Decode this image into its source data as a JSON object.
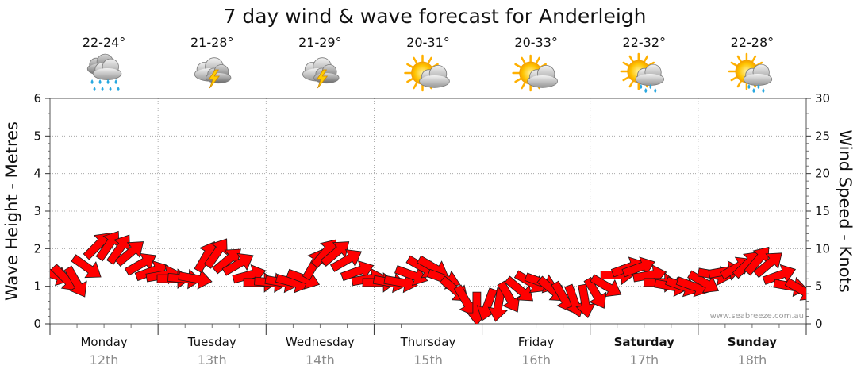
{
  "chart_data": {
    "type": "line",
    "title": "7 day wind & wave forecast for Anderleigh",
    "ylabel_left": "Wave Height - Metres",
    "ylabel_right": "Wind Speed - Knots",
    "ylim_left": [
      0,
      6
    ],
    "ylim_right": [
      0,
      30
    ],
    "left_ticks": [
      "0",
      "1",
      "2",
      "3",
      "4",
      "5",
      "6"
    ],
    "right_ticks": [
      "0",
      "5",
      "10",
      "15",
      "20",
      "25",
      "30"
    ],
    "grid": true,
    "watermark": "www.seabreeze.com.au",
    "days": [
      {
        "day": "Monday",
        "date": "12th",
        "temp": "22-24°",
        "icon": "rain-cloud-icon",
        "weekend": false
      },
      {
        "day": "Tuesday",
        "date": "13th",
        "temp": "21-28°",
        "icon": "thunderstorm-icon",
        "weekend": false
      },
      {
        "day": "Wednesday",
        "date": "14th",
        "temp": "21-29°",
        "icon": "thunderstorm-icon",
        "weekend": false
      },
      {
        "day": "Thursday",
        "date": "15th",
        "temp": "20-31°",
        "icon": "partly-cloudy-icon",
        "weekend": false
      },
      {
        "day": "Friday",
        "date": "16th",
        "temp": "20-33°",
        "icon": "partly-cloudy-icon",
        "weekend": false
      },
      {
        "day": "Saturday",
        "date": "17th",
        "temp": "22-32°",
        "icon": "sun-shower-icon",
        "weekend": true
      },
      {
        "day": "Sunday",
        "date": "18th",
        "temp": "22-28°",
        "icon": "sun-shower-icon",
        "weekend": true
      }
    ],
    "series": [
      {
        "unit": "knots",
        "color": "#ff0000",
        "marker": "wind-direction-arrow",
        "values": [
          6.5,
          6.0,
          5.5,
          7.5,
          10.5,
          10.5,
          10.0,
          9.5,
          8.0,
          7.0,
          6.5,
          6.0,
          6.0,
          6.0,
          9.0,
          9.5,
          8.5,
          8.0,
          6.5,
          5.5,
          5.5,
          5.5,
          5.5,
          6.0,
          8.0,
          9.5,
          9.5,
          8.5,
          7.0,
          6.0,
          5.5,
          5.5,
          5.5,
          6.5,
          7.5,
          7.5,
          6.0,
          4.5,
          3.0,
          2.0,
          2.5,
          2.5,
          3.5,
          4.5,
          5.5,
          5.5,
          4.5,
          3.5,
          3.0,
          3.0,
          4.0,
          5.0,
          6.5,
          7.5,
          7.5,
          6.5,
          5.5,
          5.0,
          5.0,
          5.0,
          5.5,
          6.5,
          7.0,
          7.5,
          8.0,
          8.5,
          8.0,
          6.5,
          5.0,
          4.5
        ],
        "directions": [
          20,
          45,
          60,
          35,
          -45,
          -55,
          -55,
          -40,
          -30,
          -20,
          -10,
          0,
          5,
          10,
          -60,
          -55,
          -40,
          -30,
          -15,
          0,
          5,
          10,
          15,
          20,
          -60,
          -50,
          -40,
          -30,
          -20,
          -10,
          0,
          10,
          10,
          20,
          30,
          30,
          20,
          40,
          60,
          90,
          110,
          100,
          60,
          40,
          30,
          20,
          40,
          60,
          70,
          80,
          60,
          30,
          0,
          -20,
          -20,
          -10,
          0,
          10,
          20,
          20,
          30,
          10,
          -10,
          -30,
          -45,
          -50,
          -40,
          -20,
          10,
          30
        ]
      }
    ]
  }
}
